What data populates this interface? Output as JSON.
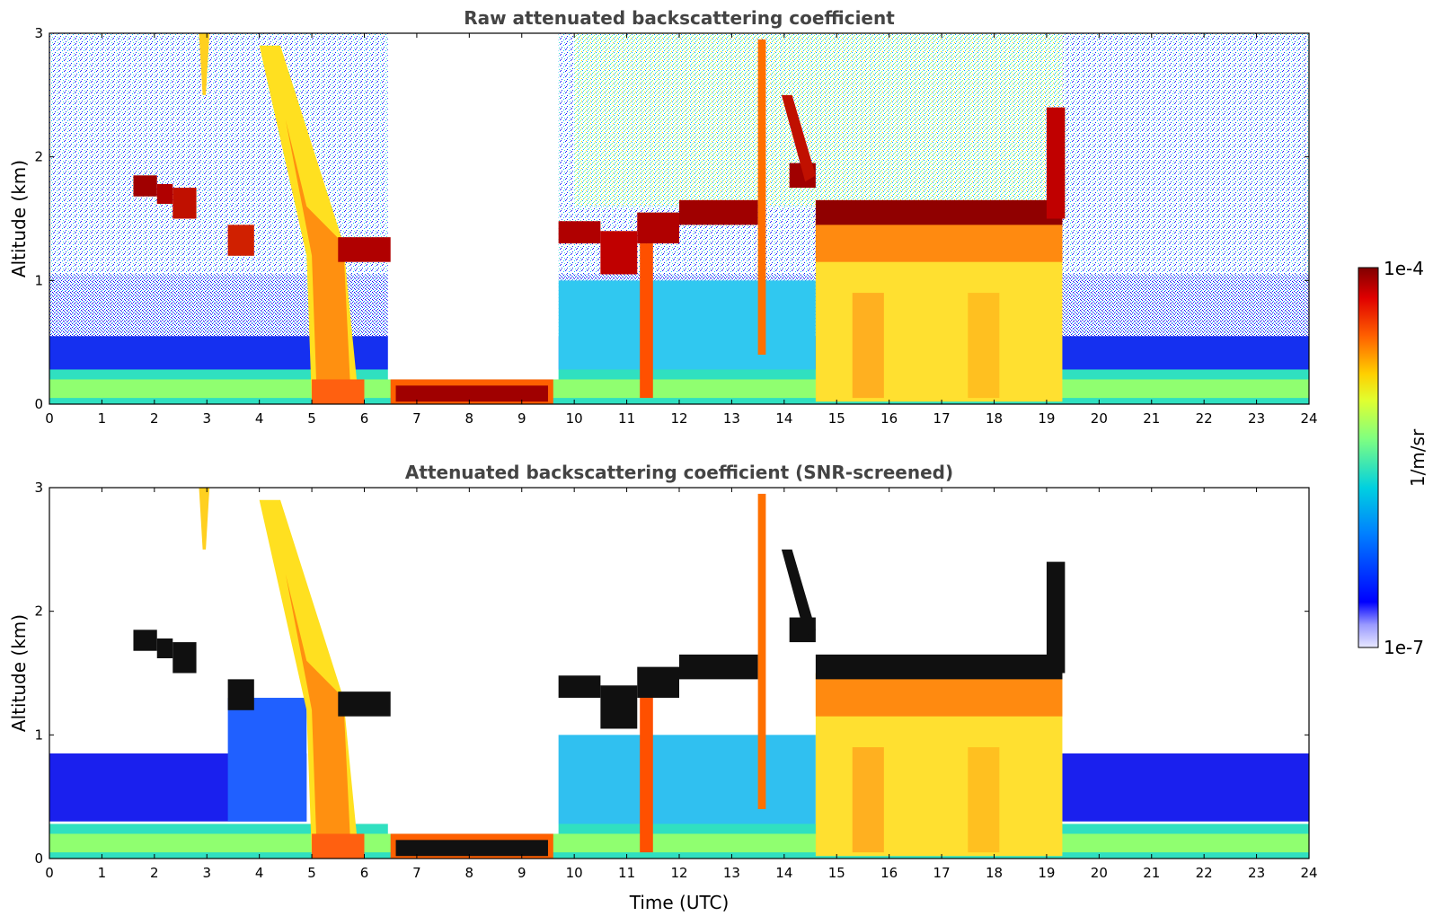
{
  "chart_data": [
    {
      "type": "heatmap",
      "title": "Raw attenuated backscattering coefficient",
      "xlabel": "",
      "ylabel": "Altitude (km)",
      "xlim": [
        0,
        24
      ],
      "ylim": [
        0,
        3
      ],
      "xticks": [
        "0",
        "1",
        "2",
        "3",
        "4",
        "5",
        "6",
        "7",
        "8",
        "9",
        "10",
        "11",
        "12",
        "13",
        "14",
        "15",
        "16",
        "17",
        "18",
        "19",
        "20",
        "21",
        "22",
        "23",
        "24"
      ],
      "yticks": [
        "0",
        "1",
        "2",
        "3"
      ],
      "screened": false
    },
    {
      "type": "heatmap",
      "title": "Attenuated backscattering coefficient (SNR-screened)",
      "xlabel": "Time (UTC)",
      "ylabel": "Altitude (km)",
      "xlim": [
        0,
        24
      ],
      "ylim": [
        0,
        3
      ],
      "xticks": [
        "0",
        "1",
        "2",
        "3",
        "4",
        "5",
        "6",
        "7",
        "8",
        "9",
        "10",
        "11",
        "12",
        "13",
        "14",
        "15",
        "16",
        "17",
        "18",
        "19",
        "20",
        "21",
        "22",
        "23",
        "24"
      ],
      "yticks": [
        "0",
        "1",
        "2",
        "3"
      ],
      "screened": true
    }
  ],
  "colorbar": {
    "label": "1/m/sr",
    "max_label": "1e-4",
    "min_label": "1e-7",
    "scale": "log",
    "range": [
      1e-07,
      0.0001
    ]
  },
  "colors": {
    "title": "#444444",
    "cloud_core": "#8b0000",
    "aerosol": "#00c8d8",
    "background": "#1010ff"
  }
}
